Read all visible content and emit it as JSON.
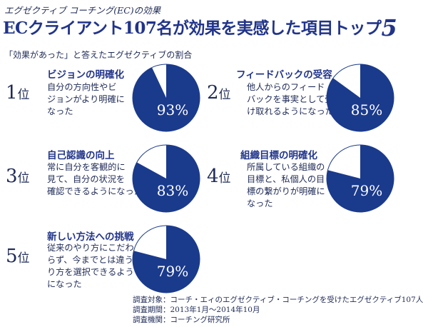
{
  "header": {
    "supertitle": "エグゼクティブ コーチング(EC)の効果",
    "title_main": "ECクライアント107名が効果を実感した項目トップ",
    "title_num": "5",
    "subtitle": "「効果があった」と答えたエグゼクティブの割合"
  },
  "colors": {
    "pie_fill": "#1a3a8c",
    "pie_rest": "#ffffff",
    "text": "#1f2b57",
    "accent": "#21348a"
  },
  "chart_data": {
    "type": "pie",
    "items": [
      {
        "rank_num": "1",
        "rank_suffix": "位",
        "title": "ビジョンの明確化",
        "lines": [
          "自分の方向性やビ",
          "ジョンがより明確に",
          "なった"
        ],
        "percent": 93,
        "label": "93%"
      },
      {
        "rank_num": "2",
        "rank_suffix": "位",
        "title": "フィードバックの受容",
        "lines": [
          "他人からのフィード",
          "バックを事実として受",
          "け取れるようになった"
        ],
        "percent": 85,
        "label": "85%"
      },
      {
        "rank_num": "3",
        "rank_suffix": "位",
        "title": "自己認識の向上",
        "lines": [
          "常に自分を客観的に",
          "見て、自分の状況を",
          "確認できるようになった"
        ],
        "percent": 83,
        "label": "83%"
      },
      {
        "rank_num": "4",
        "rank_suffix": "位",
        "title": "組織目標の明確化",
        "lines": [
          "所属している組織の",
          "目標と、私個人の目",
          "標の繋がりが明確に",
          "なった"
        ],
        "percent": 79,
        "label": "79%"
      },
      {
        "rank_num": "5",
        "rank_suffix": "位",
        "title": "新しい方法への挑戦",
        "lines": [
          "従来のやり方にこだわ",
          "らず、今までとは違うや",
          "り方を選択できるよう",
          "になった"
        ],
        "percent": 79,
        "label": "79%"
      }
    ]
  },
  "footer": {
    "lines": [
      "調査対象：コーチ・エィのエグゼクティブ・コーチングを受けたエグゼクティブ107人",
      "調査期間：2013年1月～2014年10月",
      "調査機関：コーチング研究所"
    ]
  }
}
